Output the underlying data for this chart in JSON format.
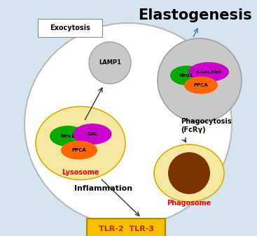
{
  "bg_color": "#d6e4f0",
  "title": "Elastogenesis",
  "title_fontsize": 15,
  "exocytosis_label": "Exocytosis",
  "inflammation_label": "Inflammation",
  "phagocytosis_label": "Phagocytosis\n(FcRγ)",
  "tlr_label": "TLR-2  TLR-3",
  "lysosome_label": "Lysosome",
  "lysosome_label_color": "#ff0000",
  "phagosome_label": "Phagosome",
  "phagosome_label_color": "#ff0000",
  "lamp1_label": "LAMP1",
  "neu1_color": "#00aa00",
  "gal_color": "#cc00cc",
  "ppca_color": "#ff6600",
  "s_gal_ebp_color": "#cc00cc",
  "lysosome_outer": "#f5e6a0",
  "lamp1_fill": "#c8c8c8",
  "elastogenesis_fill": "#c8c8c8",
  "phagosome_outer": "#f5e6a0",
  "phagosome_inner": "#7b3300",
  "arrow_color": "#333333",
  "elasto_arrow_color": "#4477aa"
}
